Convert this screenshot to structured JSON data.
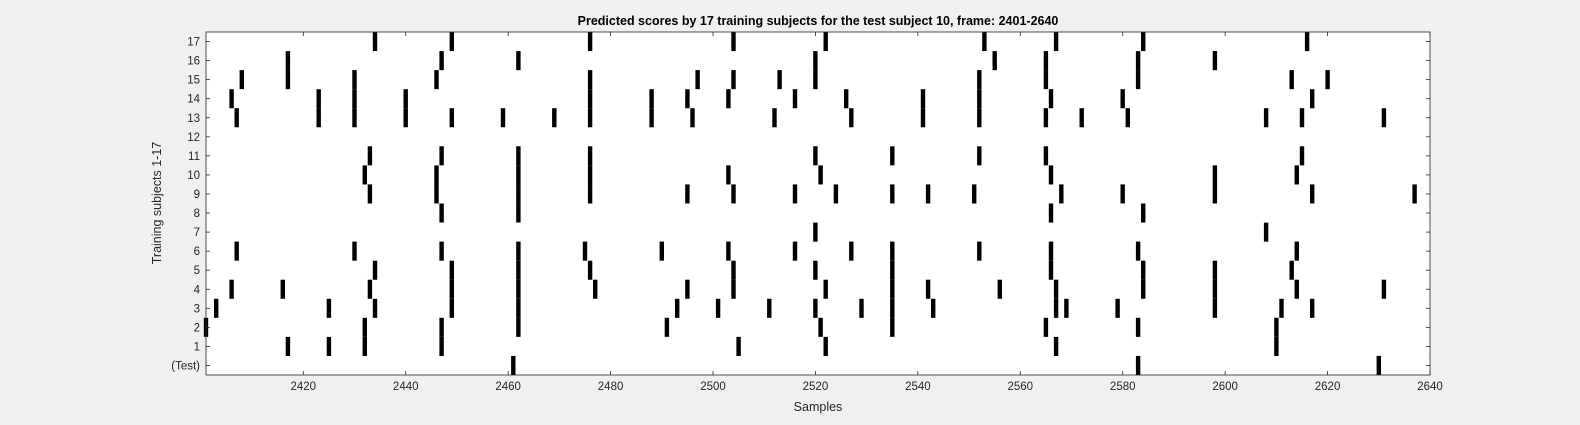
{
  "chart_data": {
    "type": "scatter",
    "title": "Predicted scores by 17 training subjects for the test subject 10, frame: 2401-2640",
    "xlabel": "Samples",
    "ylabel": "Training subjects 1-17",
    "xlim": [
      2401,
      2640
    ],
    "ylim": [
      -0.5,
      17.5
    ],
    "x_ticks": [
      2420,
      2440,
      2460,
      2480,
      2500,
      2520,
      2540,
      2560,
      2580,
      2600,
      2620,
      2640
    ],
    "y_tick_labels": [
      "(Test)",
      "1",
      "2",
      "3",
      "4",
      "5",
      "6",
      "7",
      "8",
      "9",
      "10",
      "11",
      "12",
      "13",
      "14",
      "15",
      "16",
      "17"
    ],
    "grid": false,
    "marker": "vertical-bar",
    "series": [
      {
        "row": 0,
        "x": [
          2461,
          2583,
          2630
        ]
      },
      {
        "row": 1,
        "x": [
          2417,
          2425,
          2432,
          2447,
          2505,
          2522,
          2567,
          2610
        ]
      },
      {
        "row": 2,
        "x": [
          2401,
          2432,
          2447,
          2462,
          2491,
          2521,
          2535,
          2565,
          2583,
          2610
        ]
      },
      {
        "row": 3,
        "x": [
          2403,
          2425,
          2434,
          2449,
          2462,
          2493,
          2501,
          2511,
          2520,
          2529,
          2535,
          2543,
          2567,
          2569,
          2579,
          2598,
          2611,
          2617
        ]
      },
      {
        "row": 4,
        "x": [
          2406,
          2416,
          2433,
          2449,
          2462,
          2477,
          2495,
          2504,
          2522,
          2535,
          2542,
          2556,
          2567,
          2584,
          2598,
          2614,
          2631
        ]
      },
      {
        "row": 5,
        "x": [
          2434,
          2449,
          2462,
          2476,
          2504,
          2520,
          2535,
          2566,
          2584,
          2598,
          2613
        ]
      },
      {
        "row": 6,
        "x": [
          2407,
          2430,
          2447,
          2462,
          2475,
          2490,
          2503,
          2516,
          2527,
          2535,
          2552,
          2566,
          2583,
          2614
        ]
      },
      {
        "row": 7,
        "x": [
          2520,
          2608
        ]
      },
      {
        "row": 8,
        "x": [
          2447,
          2462,
          2566,
          2584
        ]
      },
      {
        "row": 9,
        "x": [
          2433,
          2446,
          2462,
          2476,
          2495,
          2504,
          2516,
          2524,
          2535,
          2542,
          2551,
          2568,
          2580,
          2598,
          2617,
          2637
        ]
      },
      {
        "row": 10,
        "x": [
          2432,
          2446,
          2462,
          2476,
          2503,
          2521,
          2566,
          2598,
          2614
        ]
      },
      {
        "row": 11,
        "x": [
          2433,
          2447,
          2462,
          2476,
          2520,
          2535,
          2552,
          2565,
          2615
        ]
      },
      {
        "row": 12,
        "x": []
      },
      {
        "row": 13,
        "x": [
          2407,
          2423,
          2430,
          2440,
          2449,
          2459,
          2469,
          2476,
          2488,
          2496,
          2512,
          2527,
          2541,
          2552,
          2565,
          2572,
          2581,
          2608,
          2615,
          2631
        ]
      },
      {
        "row": 14,
        "x": [
          2406,
          2423,
          2430,
          2440,
          2476,
          2488,
          2495,
          2503,
          2516,
          2526,
          2541,
          2552,
          2566,
          2580,
          2617
        ]
      },
      {
        "row": 15,
        "x": [
          2408,
          2417,
          2430,
          2446,
          2476,
          2497,
          2504,
          2513,
          2520,
          2552,
          2565,
          2583,
          2613,
          2620
        ]
      },
      {
        "row": 16,
        "x": [
          2417,
          2447,
          2462,
          2520,
          2555,
          2565,
          2583,
          2598
        ]
      },
      {
        "row": 17,
        "x": [
          2434,
          2449,
          2476,
          2504,
          2522,
          2553,
          2567,
          2584,
          2616
        ]
      }
    ]
  }
}
